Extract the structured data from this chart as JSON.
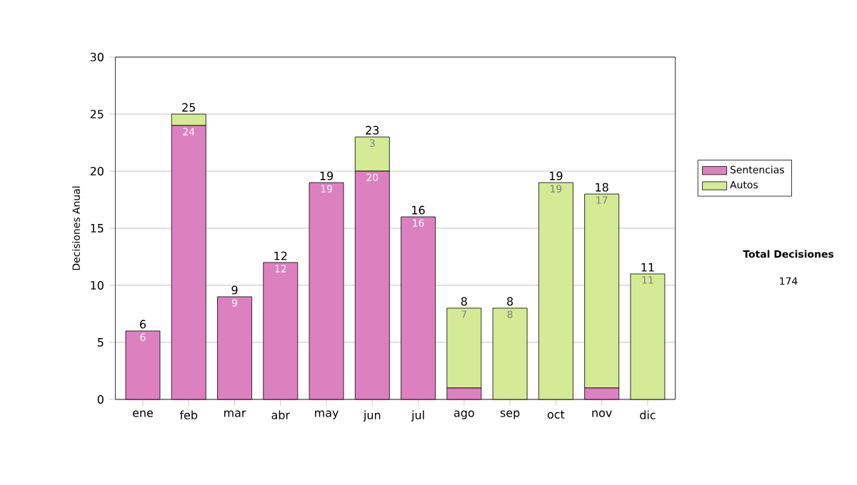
{
  "chart_data": {
    "type": "bar",
    "stacked": true,
    "ylabel": "Decisiones Anual",
    "categories": [
      "ene",
      "feb",
      "mar",
      "abr",
      "may",
      "jun",
      "jul",
      "ago",
      "sep",
      "oct",
      "nov",
      "dic"
    ],
    "series": [
      {
        "name": "Sentencias",
        "color": "#dd80c0",
        "values": [
          6,
          24,
          9,
          12,
          19,
          20,
          16,
          1,
          0,
          0,
          1,
          0
        ],
        "value_labels": [
          "6",
          "24",
          "9",
          "12",
          "19",
          "20",
          "16",
          null,
          null,
          null,
          null,
          null
        ]
      },
      {
        "name": "Autos",
        "color": "#d4ea94",
        "values": [
          0,
          1,
          0,
          0,
          0,
          3,
          0,
          7,
          8,
          19,
          17,
          11
        ],
        "value_labels": [
          null,
          null,
          null,
          null,
          null,
          "3",
          null,
          "7",
          "8",
          "19",
          "17",
          "11"
        ]
      }
    ],
    "totals": [
      "6",
      "25",
      "9",
      "12",
      "19",
      "23",
      "16",
      "8",
      "8",
      "19",
      "18",
      "11"
    ],
    "ylim": [
      0,
      30
    ],
    "yticks": [
      0,
      5,
      10,
      15,
      20,
      25,
      30
    ],
    "grid": "y",
    "legend": "right",
    "annotations": [
      "Total Decisiones",
      "174"
    ]
  }
}
